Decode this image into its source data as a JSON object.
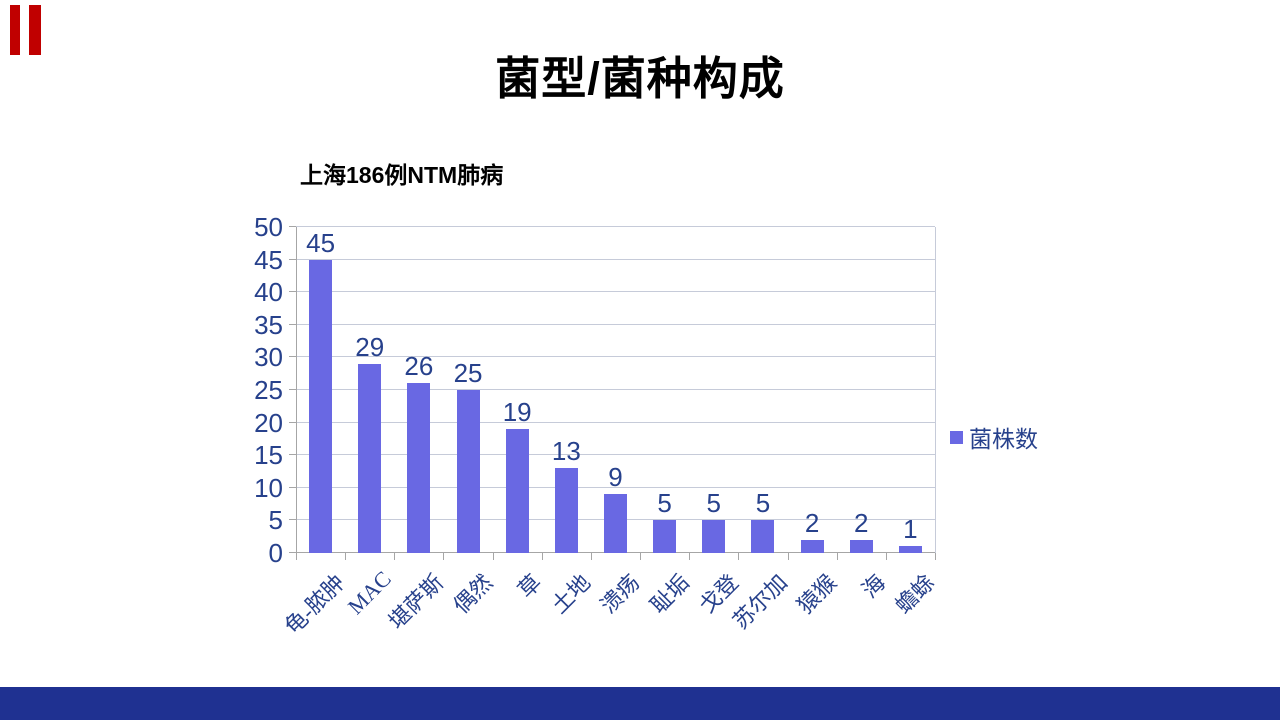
{
  "slide": {
    "title": "菌型/菌种构成",
    "decor": {
      "red_accent_color": "#C00000",
      "footer_color": "#1F3191"
    }
  },
  "chart_data": {
    "type": "bar",
    "title": "上海186例NTM肺病",
    "categories": [
      "龟-脓肿",
      "MAC",
      "堪萨斯",
      "偶然",
      "草",
      "土地",
      "溃疡",
      "耻垢",
      "戈登",
      "苏尔加",
      "猿猴",
      "海",
      "蟾蜍"
    ],
    "series": [
      {
        "name": "菌株数",
        "values": [
          45,
          29,
          26,
          25,
          19,
          13,
          9,
          5,
          5,
          5,
          2,
          2,
          1
        ]
      }
    ],
    "xlabel": "",
    "ylabel": "",
    "ylim": [
      0,
      50
    ],
    "ytick_step": 5,
    "grid": true,
    "data_labels": true,
    "legend_position": "right",
    "colors": {
      "bar": "#6968E3",
      "label": "#27418C",
      "gridline": "#C6CBD9",
      "axis": "#A6A6A6"
    }
  }
}
